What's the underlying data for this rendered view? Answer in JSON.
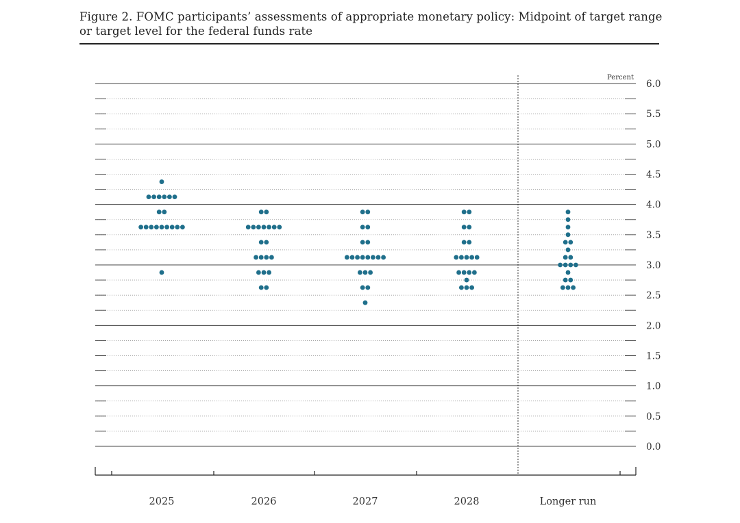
{
  "figure": {
    "title_line1": "Figure 2. FOMC participants’ assessments of appropriate monetary policy: Midpoint of target range",
    "title_line2": "or target level for the federal funds rate"
  },
  "chart_data": {
    "type": "scatter",
    "subtype": "dot-plot",
    "unit_label": "Percent",
    "categories": [
      "2025",
      "2026",
      "2027",
      "2028",
      "Longer run"
    ],
    "ylim": [
      0,
      6
    ],
    "y_ticks": [
      "6.0",
      "5.5",
      "5.0",
      "4.5",
      "4.0",
      "3.5",
      "3.0",
      "2.5",
      "2.0",
      "1.5",
      "1.0",
      "0.5",
      "0.0"
    ],
    "minor_gridlines": "dotted every 0.25",
    "major_gridlines": [
      3.0,
      4.0,
      5.0,
      6.0,
      2.0,
      1.0
    ],
    "separator_before": "Longer run",
    "dot_color": "#1f6f8b",
    "points": {
      "2025": [
        {
          "y": 4.375,
          "count": 1
        },
        {
          "y": 4.125,
          "count": 6
        },
        {
          "y": 3.875,
          "count": 2
        },
        {
          "y": 3.625,
          "count": 9
        },
        {
          "y": 2.875,
          "count": 1
        }
      ],
      "2026": [
        {
          "y": 3.875,
          "count": 2
        },
        {
          "y": 3.625,
          "count": 7
        },
        {
          "y": 3.375,
          "count": 2
        },
        {
          "y": 3.125,
          "count": 4
        },
        {
          "y": 2.875,
          "count": 3
        },
        {
          "y": 2.625,
          "count": 2
        }
      ],
      "2027": [
        {
          "y": 3.875,
          "count": 2
        },
        {
          "y": 3.625,
          "count": 2
        },
        {
          "y": 3.375,
          "count": 2
        },
        {
          "y": 3.125,
          "count": 8
        },
        {
          "y": 2.875,
          "count": 3
        },
        {
          "y": 2.625,
          "count": 2
        },
        {
          "y": 2.375,
          "count": 1
        }
      ],
      "2028": [
        {
          "y": 3.875,
          "count": 2
        },
        {
          "y": 3.625,
          "count": 2
        },
        {
          "y": 3.375,
          "count": 2
        },
        {
          "y": 3.125,
          "count": 5
        },
        {
          "y": 2.875,
          "count": 4
        },
        {
          "y": 2.75,
          "count": 1
        },
        {
          "y": 2.625,
          "count": 3
        }
      ],
      "Longer run": [
        {
          "y": 3.875,
          "count": 1
        },
        {
          "y": 3.75,
          "count": 1
        },
        {
          "y": 3.625,
          "count": 1
        },
        {
          "y": 3.5,
          "count": 1
        },
        {
          "y": 3.375,
          "count": 2
        },
        {
          "y": 3.25,
          "count": 1
        },
        {
          "y": 3.125,
          "count": 2
        },
        {
          "y": 3.0,
          "count": 4
        },
        {
          "y": 2.875,
          "count": 1
        },
        {
          "y": 2.75,
          "count": 2
        },
        {
          "y": 2.625,
          "count": 3
        }
      ]
    }
  }
}
